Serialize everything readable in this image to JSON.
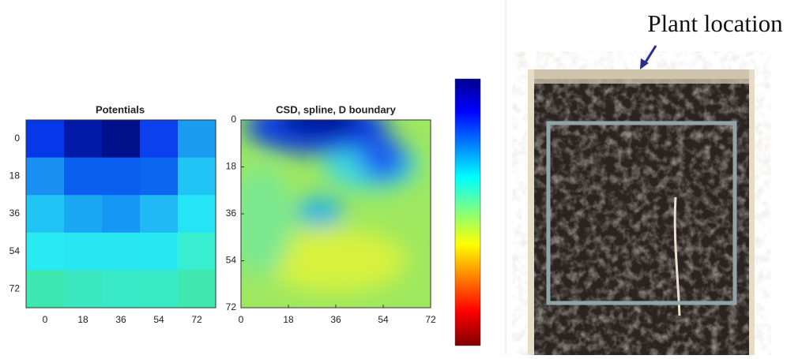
{
  "chart_data": [
    {
      "type": "heatmap",
      "title": "Potentials",
      "xticks": [
        0,
        18,
        36,
        54,
        72
      ],
      "yticks": [
        0,
        18,
        36,
        54,
        72
      ],
      "cell_colors": [
        [
          "#0637e8",
          "#021aa8",
          "#000f8a",
          "#0a40ee",
          "#1a9cf0"
        ],
        [
          "#1a90f5",
          "#0a5ff0",
          "#0a5ff0",
          "#0b66f0",
          "#20c4f5"
        ],
        [
          "#20c4f5",
          "#1aa8f5",
          "#1598f5",
          "#20b8f5",
          "#24e4f5"
        ],
        [
          "#28eaf2",
          "#28e6f2",
          "#28e6f2",
          "#28e8f2",
          "#38eed0"
        ],
        [
          "#3ee6b0",
          "#3ae8c0",
          "#38eac8",
          "#38eac6",
          "#40e8b0"
        ]
      ]
    },
    {
      "type": "smooth-map",
      "title": "CSD, spline, D boundary",
      "xlim": [
        0,
        72
      ],
      "ylim": [
        0,
        72
      ],
      "xticks": [
        0,
        18,
        36,
        54,
        72
      ],
      "yticks": [
        0,
        18,
        36,
        54,
        72
      ]
    }
  ],
  "photo": {
    "annotation": "Plant location"
  }
}
